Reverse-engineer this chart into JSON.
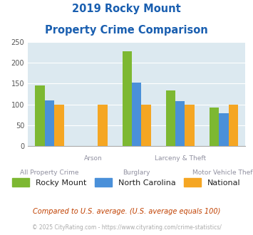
{
  "title_line1": "2019 Rocky Mount",
  "title_line2": "Property Crime Comparison",
  "categories": [
    "All Property Crime",
    "Arson",
    "Burglary",
    "Larceny & Theft",
    "Motor Vehicle Theft"
  ],
  "category_labels_top": [
    "",
    "Arson",
    "",
    "Larceny & Theft",
    ""
  ],
  "category_labels_bot": [
    "All Property Crime",
    "",
    "Burglary",
    "",
    "Motor Vehicle Theft"
  ],
  "series": {
    "Rocky Mount": [
      145,
      0,
      228,
      133,
      92
    ],
    "North Carolina": [
      110,
      0,
      153,
      108,
      78
    ],
    "National": [
      100,
      100,
      100,
      100,
      100
    ]
  },
  "colors": {
    "Rocky Mount": "#7db832",
    "North Carolina": "#4a90d9",
    "National": "#f5a623"
  },
  "ylim": [
    0,
    250
  ],
  "yticks": [
    0,
    50,
    100,
    150,
    200,
    250
  ],
  "bar_width": 0.22,
  "background_color": "#dce9f0",
  "title_color": "#1a5fb0",
  "axis_label_color": "#9090a0",
  "legend_label_color": "#222222",
  "footnote1": "Compared to U.S. average. (U.S. average equals 100)",
  "footnote2": "© 2025 CityRating.com - https://www.cityrating.com/crime-statistics/",
  "footnote1_color": "#c04000",
  "footnote2_color": "#aaaaaa"
}
